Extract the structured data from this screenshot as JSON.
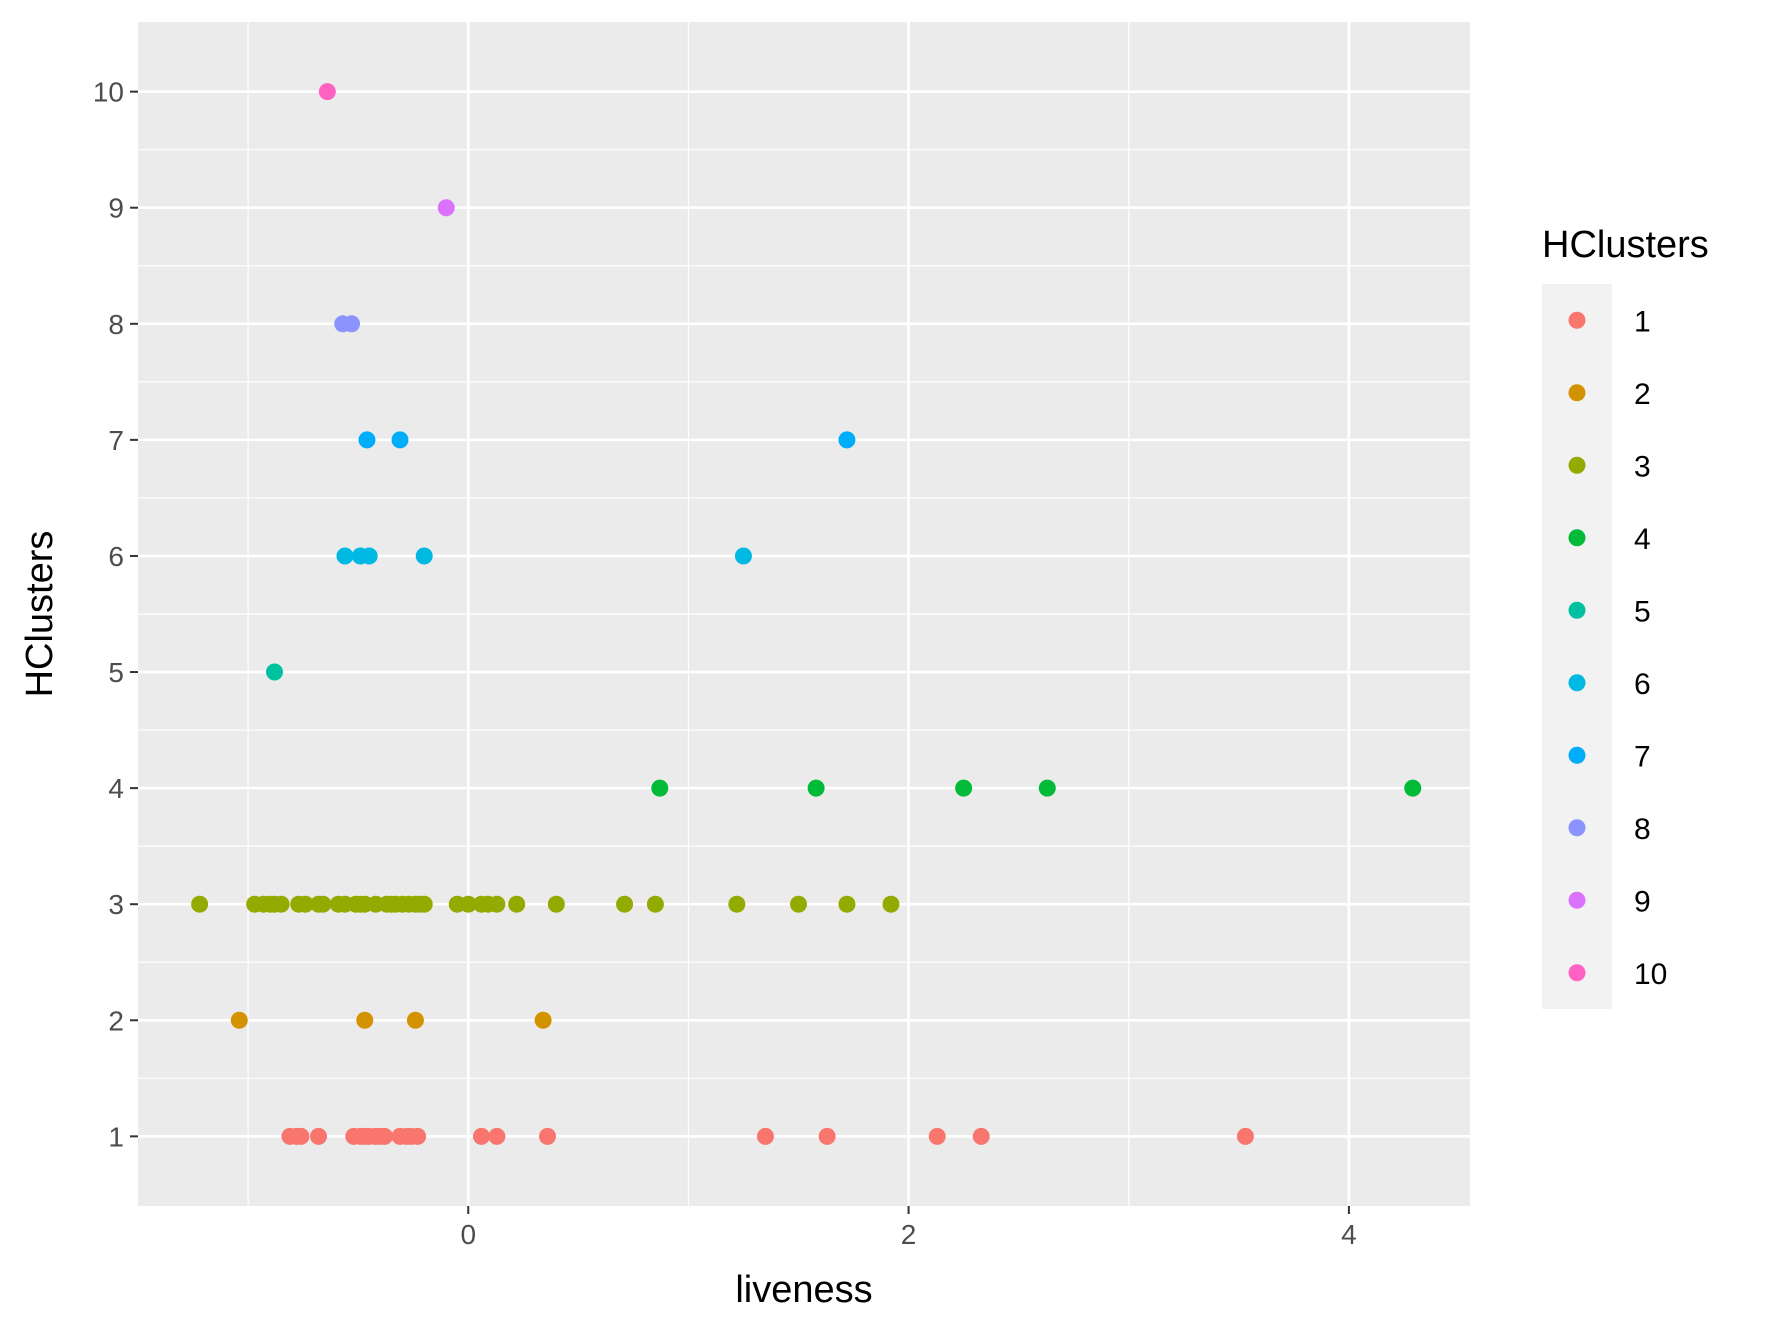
{
  "chart_data": {
    "type": "scatter",
    "title": "",
    "xlabel": "liveness",
    "ylabel": "HClusters",
    "xlim": [
      -1.5,
      4.55
    ],
    "ylim": [
      0.4,
      10.6
    ],
    "x_ticks": [
      0,
      2,
      4
    ],
    "x_tick_labels": [
      "0",
      "2",
      "4"
    ],
    "x_minor_gridlines": [
      -1,
      1,
      3
    ],
    "y_ticks": [
      1,
      2,
      3,
      4,
      5,
      6,
      7,
      8,
      9,
      10
    ],
    "y_tick_labels": [
      "1",
      "2",
      "3",
      "4",
      "5",
      "6",
      "7",
      "8",
      "9",
      "10"
    ],
    "grid": true,
    "legend": {
      "title": "HClusters",
      "position": "right"
    },
    "colors": {
      "panel_background": "#ebebeb",
      "grid": "#ffffff",
      "legend_key_background": "#f2f2f2"
    },
    "series": [
      {
        "name": "1",
        "color": "#F8766D",
        "x": [
          -0.81,
          -0.78,
          -0.76,
          -0.68,
          -0.52,
          -0.49,
          -0.47,
          -0.45,
          -0.42,
          -0.4,
          -0.38,
          -0.31,
          -0.28,
          -0.26,
          -0.23,
          0.06,
          0.13,
          0.36,
          1.35,
          1.63,
          2.13,
          2.33,
          3.53
        ],
        "y": [
          1,
          1,
          1,
          1,
          1,
          1,
          1,
          1,
          1,
          1,
          1,
          1,
          1,
          1,
          1,
          1,
          1,
          1,
          1,
          1,
          1,
          1,
          1
        ]
      },
      {
        "name": "2",
        "color": "#D39200",
        "x": [
          -1.04,
          -0.47,
          -0.24,
          0.34
        ],
        "y": [
          2,
          2,
          2,
          2
        ]
      },
      {
        "name": "3",
        "color": "#93AA00",
        "x": [
          -1.22,
          -0.97,
          -0.93,
          -0.9,
          -0.88,
          -0.85,
          -0.77,
          -0.74,
          -0.68,
          -0.66,
          -0.59,
          -0.56,
          -0.51,
          -0.49,
          -0.47,
          -0.42,
          -0.37,
          -0.35,
          -0.33,
          -0.3,
          -0.27,
          -0.24,
          -0.22,
          -0.2,
          -0.05,
          0.0,
          0.06,
          0.09,
          0.13,
          0.22,
          0.4,
          0.71,
          0.85,
          1.22,
          1.5,
          1.72,
          1.92
        ],
        "y": [
          3,
          3,
          3,
          3,
          3,
          3,
          3,
          3,
          3,
          3,
          3,
          3,
          3,
          3,
          3,
          3,
          3,
          3,
          3,
          3,
          3,
          3,
          3,
          3,
          3,
          3,
          3,
          3,
          3,
          3,
          3,
          3,
          3,
          3,
          3,
          3,
          3
        ]
      },
      {
        "name": "4",
        "color": "#00BA38",
        "x": [
          0.87,
          1.58,
          2.25,
          2.63,
          4.29
        ],
        "y": [
          4,
          4,
          4,
          4,
          4
        ]
      },
      {
        "name": "5",
        "color": "#00C19F",
        "x": [
          -0.88
        ],
        "y": [
          5
        ]
      },
      {
        "name": "6",
        "color": "#00B9E3",
        "x": [
          -0.56,
          -0.49,
          -0.45,
          -0.2,
          1.25
        ],
        "y": [
          6,
          6,
          6,
          6,
          6
        ]
      },
      {
        "name": "7",
        "color": "#00ADFA",
        "x": [
          -0.46,
          -0.31,
          1.72
        ],
        "y": [
          7,
          7,
          7
        ]
      },
      {
        "name": "8",
        "color": "#8B93FF",
        "x": [
          -0.57,
          -0.53
        ],
        "y": [
          8,
          8
        ]
      },
      {
        "name": "9",
        "color": "#DB72FB",
        "x": [
          -0.1
        ],
        "y": [
          9
        ]
      },
      {
        "name": "10",
        "color": "#FF61C3",
        "x": [
          -0.64
        ],
        "y": [
          10
        ]
      }
    ]
  }
}
